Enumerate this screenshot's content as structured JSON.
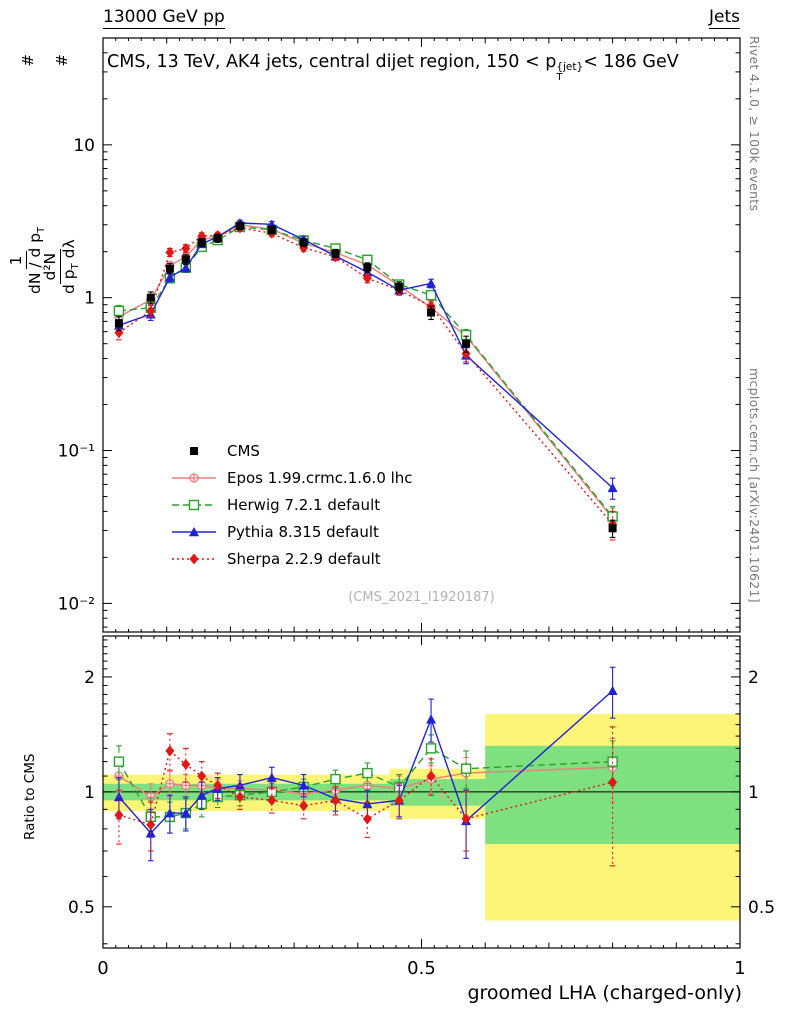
{
  "header": {
    "left": "13000 GeV pp",
    "right": "Jets"
  },
  "title": {
    "pre": "CMS, 13 TeV, AK4 jets, central dijet region, 150 < p",
    "sup": "{jet}",
    "sub": "T",
    "post": "< 186 GeV"
  },
  "ylabel_main": {
    "hash": "#",
    "frac1": {
      "num": "1",
      "den_main": "dN / d p",
      "den_sub": "T"
    },
    "frac2": {
      "num": "d²N",
      "den_main": "d p",
      "den_sub": "T",
      "den_tail": "dλ"
    }
  },
  "ylabel_ratio": "Ratio to CMS",
  "xlabel": "groomed LHA (charged-only)",
  "watermark": "(CMS_2021_I1920187)",
  "side_notes": {
    "top": "Rivet 4.1.0, ≥ 100k events",
    "bottom": "mcplots.cern.ch [arXiv:2401.10621]"
  },
  "chart_data": {
    "type": "line",
    "x": [
      0.025,
      0.075,
      0.105,
      0.13,
      0.155,
      0.18,
      0.215,
      0.265,
      0.315,
      0.365,
      0.415,
      0.465,
      0.515,
      0.57,
      0.8
    ],
    "axes": {
      "x": {
        "min": 0,
        "max": 1,
        "major": [
          0,
          0.5,
          1
        ],
        "labels": [
          "0",
          "0.5",
          "1"
        ]
      },
      "y_main": {
        "min": 0.0065,
        "max": 50,
        "ticks": [
          {
            "v": 10,
            "label": "10"
          },
          {
            "v": 1,
            "label": "1"
          },
          {
            "v": 0.1,
            "label": "10⁻¹"
          },
          {
            "v": 0.01,
            "label": "10⁻²"
          }
        ]
      },
      "y_ratio": {
        "min": 0.39,
        "max": 2.56,
        "ticks": [
          {
            "v": 2,
            "label": "2"
          },
          {
            "v": 1,
            "label": "1"
          },
          {
            "v": 0.5,
            "label": "0.5"
          }
        ],
        "minor": [
          0.4,
          0.6,
          0.7,
          0.8,
          0.9,
          1.1,
          1.2,
          1.3,
          1.4,
          1.5,
          1.6,
          1.7,
          1.8,
          1.9,
          2.1,
          2.2,
          2.3,
          2.4,
          2.5
        ]
      }
    },
    "bands": {
      "yellow": {
        "color": "#fcf578",
        "segments": [
          [
            0,
            0.45,
            0.89,
            1.11
          ],
          [
            0.45,
            0.6,
            0.85,
            1.15
          ],
          [
            0.6,
            1.0,
            0.46,
            1.6
          ]
        ]
      },
      "green": {
        "color": "#7fe07f",
        "segments": [
          [
            0,
            0.45,
            0.95,
            1.05
          ],
          [
            0.45,
            0.6,
            0.92,
            1.08
          ],
          [
            0.6,
            1.0,
            0.73,
            1.32
          ]
        ]
      }
    },
    "series": [
      {
        "id": "cms",
        "label": "CMS",
        "color": "#000000",
        "marker": "square-filled",
        "line": "none",
        "values": [
          0.68,
          1.0,
          1.55,
          1.78,
          2.3,
          2.45,
          2.95,
          2.78,
          2.3,
          1.95,
          1.58,
          1.18,
          0.8,
          0.5,
          0.031
        ],
        "errors": [
          0.07,
          0.09,
          0.12,
          0.13,
          0.14,
          0.15,
          0.17,
          0.16,
          0.14,
          0.12,
          0.11,
          0.09,
          0.08,
          0.06,
          0.004
        ]
      },
      {
        "id": "epos",
        "label": "Epos 1.99.crmc.1.6.0 lhc",
        "color": "#ec7d7d",
        "marker": "circle-plus",
        "line": "solid",
        "values": [
          0.75,
          0.97,
          1.62,
          1.85,
          2.4,
          2.5,
          3.0,
          2.8,
          2.27,
          1.97,
          1.64,
          1.2,
          0.86,
          0.56,
          0.036
        ],
        "errors": [
          0.06,
          0.07,
          0.1,
          0.11,
          0.12,
          0.12,
          0.13,
          0.12,
          0.11,
          0.1,
          0.09,
          0.08,
          0.07,
          0.05,
          0.006
        ],
        "ratio": [
          1.1,
          0.97,
          1.05,
          1.04,
          1.04,
          1.02,
          1.02,
          1.01,
          0.99,
          1.01,
          1.04,
          1.02,
          1.08,
          1.12,
          1.16
        ],
        "ratio_errors": [
          0.1,
          0.08,
          0.08,
          0.07,
          0.06,
          0.06,
          0.05,
          0.05,
          0.05,
          0.06,
          0.07,
          0.08,
          0.09,
          0.11,
          0.22
        ]
      },
      {
        "id": "herwig",
        "label": "Herwig 7.2.1 default",
        "color": "#2aa22a",
        "marker": "square-open",
        "line": "dashed",
        "values": [
          0.82,
          0.86,
          1.34,
          1.57,
          2.15,
          2.38,
          2.9,
          2.78,
          2.37,
          2.1,
          1.77,
          1.22,
          1.04,
          0.57,
          0.037
        ],
        "errors": [
          0.07,
          0.07,
          0.09,
          0.1,
          0.11,
          0.12,
          0.13,
          0.12,
          0.11,
          0.1,
          0.09,
          0.08,
          0.07,
          0.05,
          0.006
        ],
        "ratio": [
          1.2,
          0.86,
          0.86,
          0.88,
          0.93,
          0.97,
          0.98,
          1.0,
          1.03,
          1.08,
          1.12,
          1.03,
          1.3,
          1.15,
          1.2
        ],
        "ratio_errors": [
          0.12,
          0.1,
          0.08,
          0.08,
          0.07,
          0.06,
          0.06,
          0.05,
          0.05,
          0.06,
          0.07,
          0.08,
          0.11,
          0.13,
          0.16
        ]
      },
      {
        "id": "pythia",
        "label": "Pythia 8.315 default",
        "color": "#2121d6",
        "marker": "triangle-filled",
        "line": "solid",
        "values": [
          0.66,
          0.78,
          1.36,
          1.57,
          2.25,
          2.5,
          3.08,
          3.02,
          2.4,
          1.87,
          1.47,
          1.12,
          1.24,
          0.42,
          0.057
        ],
        "errors": [
          0.06,
          0.07,
          0.09,
          0.1,
          0.11,
          0.12,
          0.13,
          0.13,
          0.11,
          0.1,
          0.09,
          0.08,
          0.08,
          0.05,
          0.009
        ],
        "ratio": [
          0.97,
          0.78,
          0.88,
          0.88,
          0.98,
          1.02,
          1.04,
          1.09,
          1.04,
          0.96,
          0.93,
          0.95,
          1.55,
          0.84,
          1.84
        ],
        "ratio_errors": [
          0.12,
          0.12,
          0.1,
          0.09,
          0.08,
          0.07,
          0.07,
          0.07,
          0.07,
          0.07,
          0.08,
          0.09,
          0.2,
          0.17,
          0.28
        ]
      },
      {
        "id": "sherpa",
        "label": "Sherpa 2.2.9 default",
        "color": "#e01818",
        "marker": "diamond-filled",
        "line": "dotted",
        "values": [
          0.59,
          0.82,
          1.98,
          2.1,
          2.53,
          2.55,
          2.86,
          2.64,
          2.12,
          1.85,
          1.34,
          1.12,
          0.88,
          0.43,
          0.033
        ],
        "errors": [
          0.06,
          0.07,
          0.12,
          0.12,
          0.13,
          0.13,
          0.13,
          0.12,
          0.11,
          0.1,
          0.09,
          0.08,
          0.07,
          0.05,
          0.007
        ],
        "ratio": [
          0.87,
          0.82,
          1.28,
          1.18,
          1.1,
          1.04,
          0.97,
          0.95,
          0.92,
          0.95,
          0.85,
          0.95,
          1.1,
          0.85,
          1.06
        ],
        "ratio_errors": [
          0.14,
          0.12,
          0.14,
          0.12,
          0.1,
          0.08,
          0.07,
          0.07,
          0.07,
          0.08,
          0.09,
          0.1,
          0.12,
          0.15,
          0.42
        ]
      }
    ],
    "legend_position": "middle-left",
    "grid": false
  }
}
